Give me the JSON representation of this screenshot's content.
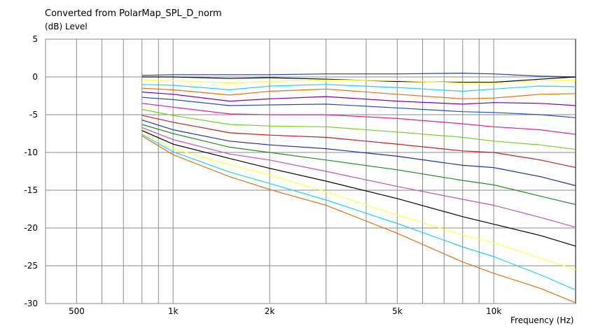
{
  "chart_data": {
    "type": "line",
    "title": "Converted from PolarMap_SPL_D_norm",
    "ylabel": "(dB)  Level",
    "xlabel": "Frequency  (Hz)",
    "x_scale": "log",
    "xlim": [
      400,
      18000
    ],
    "ylim": [
      -30,
      5
    ],
    "grid": true,
    "x_ticks": [
      {
        "value": 500,
        "label": "500"
      },
      {
        "value": 1000,
        "label": "1k"
      },
      {
        "value": 2000,
        "label": "2k"
      },
      {
        "value": 5000,
        "label": "5k"
      },
      {
        "value": 10000,
        "label": "10k"
      }
    ],
    "x_gridlines": [
      400,
      500,
      600,
      700,
      800,
      900,
      1000,
      2000,
      3000,
      4000,
      5000,
      6000,
      7000,
      8000,
      9000,
      10000
    ],
    "y_ticks": [
      5,
      0,
      -5,
      -10,
      -15,
      -20,
      -25,
      -30
    ],
    "x": [
      800,
      1000,
      1500,
      2000,
      3000,
      5000,
      8000,
      10000,
      14000,
      18000
    ],
    "series": [
      {
        "color": "#2040a0",
        "values": [
          0.2,
          0.3,
          0.3,
          0.3,
          0.4,
          0.4,
          0.5,
          0.4,
          0.1,
          0.0
        ]
      },
      {
        "color": "#000000",
        "values": [
          0.0,
          0.0,
          -0.2,
          -0.1,
          -0.3,
          -0.6,
          -0.7,
          -0.7,
          -0.3,
          0.0
        ]
      },
      {
        "color": "#ffff40",
        "values": [
          -0.4,
          -0.5,
          -0.8,
          -0.6,
          -0.4,
          -0.5,
          -0.8,
          -0.8,
          -0.5,
          -0.4
        ]
      },
      {
        "color": "#20d0f0",
        "values": [
          -1.0,
          -1.1,
          -1.7,
          -1.2,
          -1.0,
          -1.4,
          -1.9,
          -1.6,
          -1.2,
          -1.3
        ]
      },
      {
        "color": "#e07010",
        "values": [
          -1.5,
          -1.7,
          -2.4,
          -1.9,
          -1.6,
          -2.3,
          -2.9,
          -2.8,
          -2.3,
          -2.2
        ]
      },
      {
        "color": "#8000a0",
        "values": [
          -2.0,
          -2.3,
          -3.2,
          -2.9,
          -2.6,
          -3.2,
          -3.6,
          -3.4,
          -3.5,
          -3.8
        ]
      },
      {
        "color": "#2050b0",
        "values": [
          -2.7,
          -3.0,
          -3.8,
          -3.7,
          -3.6,
          -4.1,
          -4.6,
          -4.7,
          -5.0,
          -5.4
        ]
      },
      {
        "color": "#e02090",
        "values": [
          -3.5,
          -4.0,
          -4.9,
          -5.0,
          -5.0,
          -5.5,
          -6.2,
          -6.6,
          -7.0,
          -7.6
        ]
      },
      {
        "color": "#70d020",
        "values": [
          -4.3,
          -5.1,
          -6.3,
          -6.5,
          -6.6,
          -7.3,
          -8.0,
          -8.5,
          -9.0,
          -9.6
        ]
      },
      {
        "color": "#c02020",
        "values": [
          -5.1,
          -6.0,
          -7.4,
          -7.7,
          -8.0,
          -8.9,
          -9.8,
          -10.0,
          -11.0,
          -12.0
        ]
      },
      {
        "color": "#2030b0",
        "values": [
          -5.7,
          -7.0,
          -8.5,
          -9.0,
          -9.5,
          -10.5,
          -11.7,
          -12.0,
          -13.2,
          -14.4
        ]
      },
      {
        "color": "#209020",
        "values": [
          -6.3,
          -7.5,
          -9.3,
          -10.0,
          -11.0,
          -12.3,
          -13.7,
          -14.3,
          -15.8,
          -16.9
        ]
      },
      {
        "color": "#c050c0",
        "values": [
          -6.7,
          -8.3,
          -10.2,
          -11.0,
          -12.5,
          -14.5,
          -16.2,
          -17.0,
          -18.6,
          -19.9
        ]
      },
      {
        "color": "#000000",
        "values": [
          -7.1,
          -8.9,
          -10.8,
          -12.1,
          -13.8,
          -16.1,
          -18.5,
          -19.5,
          -21.0,
          -22.4
        ]
      },
      {
        "color": "#ffff40",
        "values": [
          -7.4,
          -9.5,
          -11.6,
          -13.0,
          -15.2,
          -18.3,
          -20.9,
          -22.0,
          -24.0,
          -25.5
        ]
      },
      {
        "color": "#20d0f0",
        "values": [
          -7.6,
          -9.9,
          -12.6,
          -14.1,
          -16.3,
          -19.4,
          -22.5,
          -23.8,
          -26.2,
          -28.2
        ]
      },
      {
        "color": "#e07010",
        "values": [
          -7.8,
          -10.3,
          -13.2,
          -14.9,
          -17.0,
          -20.7,
          -24.5,
          -26.0,
          -28.0,
          -29.9
        ]
      }
    ]
  }
}
